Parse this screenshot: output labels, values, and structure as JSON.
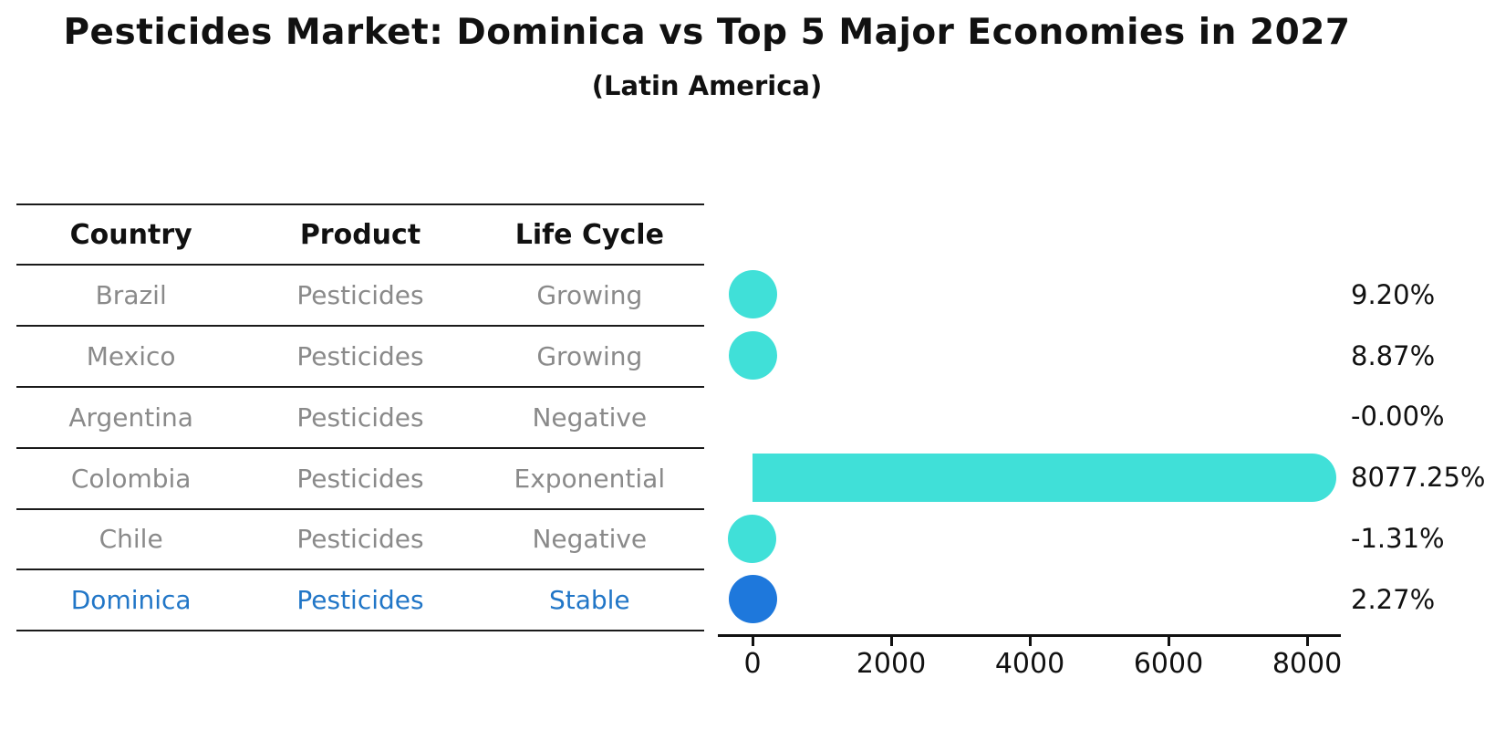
{
  "title": "Pesticides Market: Dominica vs Top 5 Major Economies in 2027",
  "subtitle": "(Latin America)",
  "table": {
    "headers": [
      "Country",
      "Product",
      "Life Cycle"
    ],
    "rows": [
      {
        "country": "Brazil",
        "product": "Pesticides",
        "life_cycle": "Growing"
      },
      {
        "country": "Mexico",
        "product": "Pesticides",
        "life_cycle": "Growing"
      },
      {
        "country": "Argentina",
        "product": "Pesticides",
        "life_cycle": "Negative"
      },
      {
        "country": "Colombia",
        "product": "Pesticides",
        "life_cycle": "Exponential"
      },
      {
        "country": "Chile",
        "product": "Pesticides",
        "life_cycle": "Negative"
      },
      {
        "country": "Dominica",
        "product": "Pesticides",
        "life_cycle": "Stable"
      }
    ],
    "highlight_row": 5
  },
  "chart_data": {
    "type": "bar",
    "orientation": "horizontal",
    "categories": [
      "Brazil",
      "Mexico",
      "Argentina",
      "Colombia",
      "Chile",
      "Dominica"
    ],
    "values": [
      9.2,
      8.87,
      -0.0,
      8077.25,
      -1.31,
      2.27
    ],
    "value_labels": [
      "9.20%",
      "8.87%",
      "-0.00%",
      "8077.25%",
      "-1.31%",
      "2.27%"
    ],
    "x_ticks": [
      0,
      2000,
      4000,
      6000,
      8000
    ],
    "x_tick_labels": [
      "0",
      "2000",
      "4000",
      "6000",
      "8000"
    ],
    "xlim": [
      0,
      8490
    ],
    "grid": false,
    "legend": false,
    "highlight_index": 5,
    "bar_color": "#40E0D8",
    "highlight_bar_color": "#1E78DC"
  },
  "colors": {
    "background": "#FFFFFF",
    "title_text": "#111111",
    "table_header_text": "#111111",
    "table_body_text": "#8A8A8A",
    "highlight_text": "#2176C7",
    "axis": "#111111"
  }
}
